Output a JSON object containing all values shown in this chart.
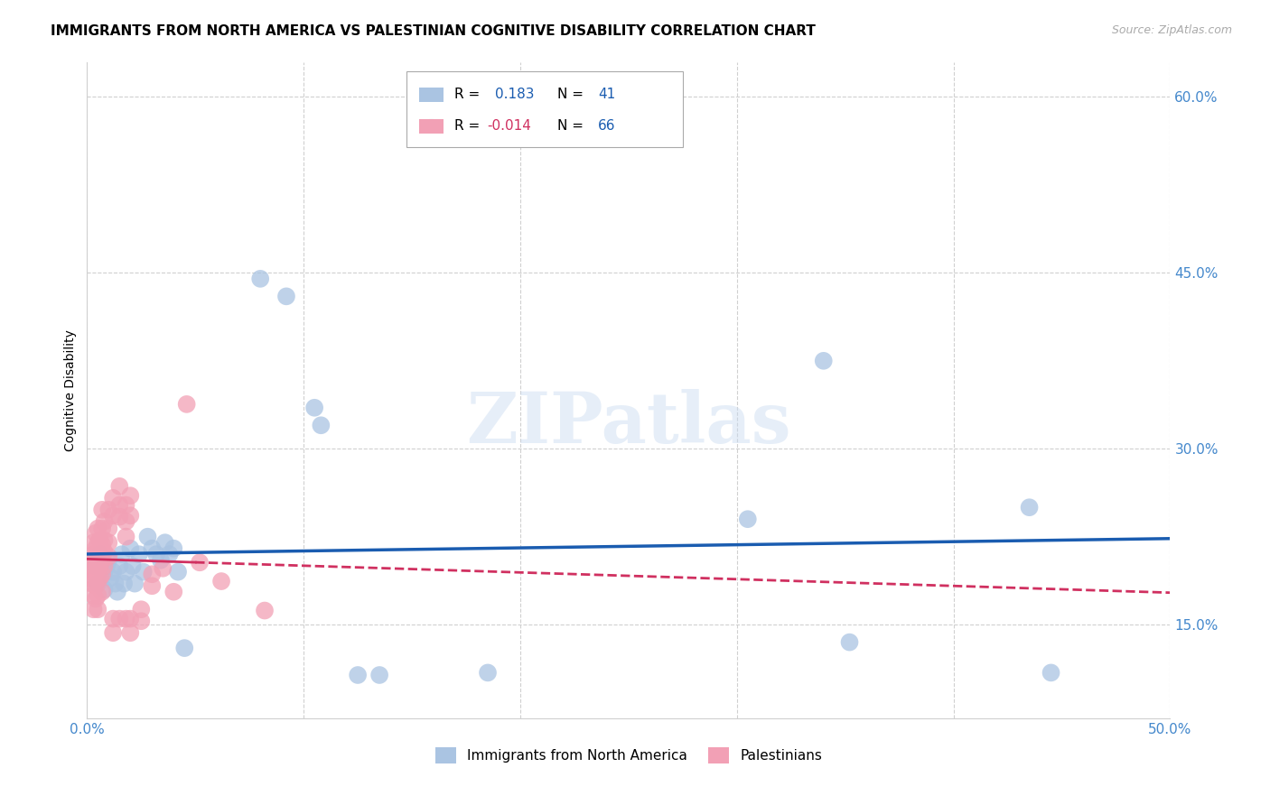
{
  "title": "IMMIGRANTS FROM NORTH AMERICA VS PALESTINIAN COGNITIVE DISABILITY CORRELATION CHART",
  "source": "Source: ZipAtlas.com",
  "ylabel": "Cognitive Disability",
  "xlim": [
    0.0,
    0.5
  ],
  "ylim": [
    0.07,
    0.63
  ],
  "xticks": [
    0.0,
    0.1,
    0.2,
    0.3,
    0.4,
    0.5
  ],
  "xticklabels": [
    "0.0%",
    "",
    "",
    "",
    "",
    "50.0%"
  ],
  "yticks": [
    0.15,
    0.3,
    0.45,
    0.6
  ],
  "yticklabels": [
    "15.0%",
    "30.0%",
    "45.0%",
    "60.0%"
  ],
  "blue_R": 0.183,
  "blue_N": 41,
  "pink_R": -0.014,
  "pink_N": 66,
  "blue_color": "#aac4e2",
  "pink_color": "#f2a0b5",
  "blue_line_color": "#1a5cb0",
  "pink_line_color": "#d03060",
  "watermark": "ZIPatlas",
  "blue_scatter": [
    [
      0.004,
      0.2
    ],
    [
      0.005,
      0.185
    ],
    [
      0.006,
      0.21
    ],
    [
      0.008,
      0.195
    ],
    [
      0.008,
      0.18
    ],
    [
      0.009,
      0.2
    ],
    [
      0.01,
      0.205
    ],
    [
      0.011,
      0.19
    ],
    [
      0.012,
      0.195
    ],
    [
      0.013,
      0.185
    ],
    [
      0.014,
      0.178
    ],
    [
      0.015,
      0.2
    ],
    [
      0.016,
      0.21
    ],
    [
      0.017,
      0.185
    ],
    [
      0.018,
      0.195
    ],
    [
      0.02,
      0.215
    ],
    [
      0.021,
      0.2
    ],
    [
      0.022,
      0.185
    ],
    [
      0.024,
      0.21
    ],
    [
      0.026,
      0.195
    ],
    [
      0.028,
      0.225
    ],
    [
      0.03,
      0.215
    ],
    [
      0.032,
      0.21
    ],
    [
      0.034,
      0.205
    ],
    [
      0.036,
      0.22
    ],
    [
      0.038,
      0.21
    ],
    [
      0.04,
      0.215
    ],
    [
      0.042,
      0.195
    ],
    [
      0.045,
      0.13
    ],
    [
      0.08,
      0.445
    ],
    [
      0.092,
      0.43
    ],
    [
      0.105,
      0.335
    ],
    [
      0.108,
      0.32
    ],
    [
      0.125,
      0.107
    ],
    [
      0.135,
      0.107
    ],
    [
      0.185,
      0.109
    ],
    [
      0.305,
      0.24
    ],
    [
      0.34,
      0.375
    ],
    [
      0.352,
      0.135
    ],
    [
      0.435,
      0.25
    ],
    [
      0.445,
      0.109
    ]
  ],
  "pink_scatter": [
    [
      0.002,
      0.205
    ],
    [
      0.002,
      0.195
    ],
    [
      0.002,
      0.185
    ],
    [
      0.003,
      0.22
    ],
    [
      0.003,
      0.21
    ],
    [
      0.003,
      0.198
    ],
    [
      0.003,
      0.188
    ],
    [
      0.003,
      0.175
    ],
    [
      0.003,
      0.163
    ],
    [
      0.004,
      0.228
    ],
    [
      0.004,
      0.215
    ],
    [
      0.004,
      0.205
    ],
    [
      0.004,
      0.195
    ],
    [
      0.004,
      0.183
    ],
    [
      0.004,
      0.172
    ],
    [
      0.005,
      0.232
    ],
    [
      0.005,
      0.22
    ],
    [
      0.005,
      0.21
    ],
    [
      0.005,
      0.198
    ],
    [
      0.005,
      0.188
    ],
    [
      0.005,
      0.175
    ],
    [
      0.005,
      0.163
    ],
    [
      0.006,
      0.222
    ],
    [
      0.006,
      0.21
    ],
    [
      0.006,
      0.2
    ],
    [
      0.006,
      0.19
    ],
    [
      0.007,
      0.248
    ],
    [
      0.007,
      0.232
    ],
    [
      0.007,
      0.218
    ],
    [
      0.007,
      0.205
    ],
    [
      0.007,
      0.193
    ],
    [
      0.007,
      0.178
    ],
    [
      0.008,
      0.238
    ],
    [
      0.008,
      0.222
    ],
    [
      0.008,
      0.212
    ],
    [
      0.008,
      0.2
    ],
    [
      0.01,
      0.248
    ],
    [
      0.01,
      0.232
    ],
    [
      0.01,
      0.22
    ],
    [
      0.01,
      0.208
    ],
    [
      0.012,
      0.258
    ],
    [
      0.012,
      0.243
    ],
    [
      0.012,
      0.155
    ],
    [
      0.012,
      0.143
    ],
    [
      0.015,
      0.268
    ],
    [
      0.015,
      0.252
    ],
    [
      0.015,
      0.242
    ],
    [
      0.015,
      0.155
    ],
    [
      0.018,
      0.252
    ],
    [
      0.018,
      0.238
    ],
    [
      0.018,
      0.225
    ],
    [
      0.018,
      0.155
    ],
    [
      0.02,
      0.26
    ],
    [
      0.02,
      0.243
    ],
    [
      0.02,
      0.155
    ],
    [
      0.02,
      0.143
    ],
    [
      0.025,
      0.163
    ],
    [
      0.025,
      0.153
    ],
    [
      0.03,
      0.193
    ],
    [
      0.03,
      0.183
    ],
    [
      0.035,
      0.198
    ],
    [
      0.04,
      0.178
    ],
    [
      0.046,
      0.338
    ],
    [
      0.052,
      0.203
    ],
    [
      0.062,
      0.187
    ],
    [
      0.082,
      0.162
    ]
  ],
  "grid_color": "#d0d0d0",
  "tick_label_color": "#4488cc",
  "background_color": "#ffffff"
}
